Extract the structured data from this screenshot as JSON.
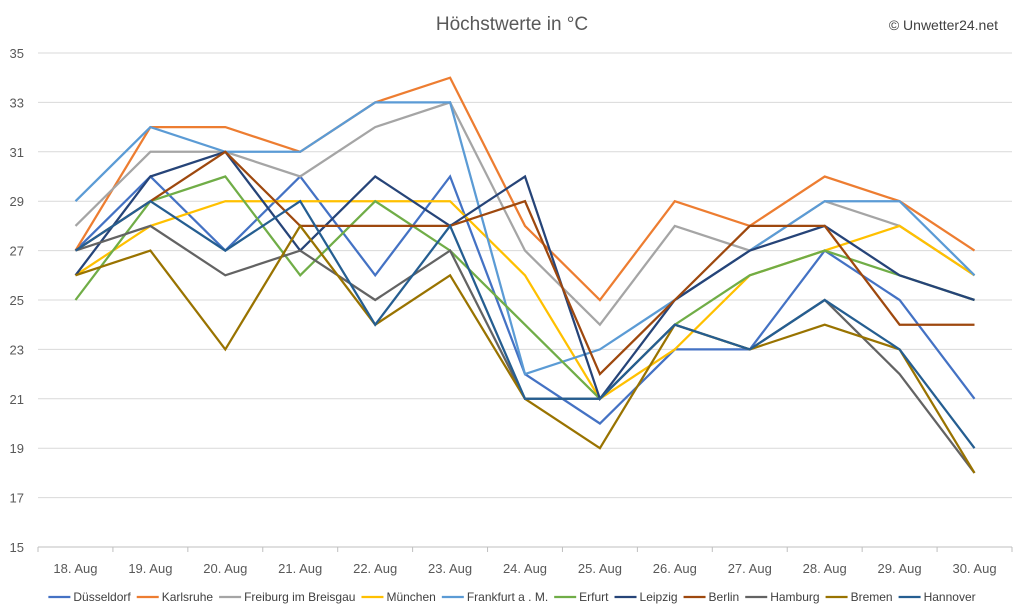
{
  "chart_data": {
    "type": "line",
    "title": "Höchstwerte in °C",
    "credit": "© Unwetter24.net",
    "xlabel": "",
    "ylabel": "",
    "ylim": [
      15,
      35
    ],
    "yticks": [
      "15",
      "17",
      "19",
      "21",
      "23",
      "25",
      "27",
      "29",
      "31",
      "33",
      "35"
    ],
    "categories": [
      "18. Aug",
      "19. Aug",
      "20. Aug",
      "21. Aug",
      "22. Aug",
      "23. Aug",
      "24. Aug",
      "25. Aug",
      "26. Aug",
      "27. Aug",
      "28. Aug",
      "29. Aug",
      "30. Aug"
    ],
    "grid": true,
    "legend_position": "bottom",
    "series": [
      {
        "name": "Düsseldorf",
        "color": "#4472C4",
        "values": [
          27,
          30,
          27,
          30,
          26,
          30,
          22,
          20,
          23,
          23,
          27,
          25,
          21
        ]
      },
      {
        "name": "Karlsruhe",
        "color": "#ED7D31",
        "values": [
          27,
          32,
          32,
          31,
          33,
          34,
          28,
          25,
          29,
          28,
          30,
          29,
          27
        ]
      },
      {
        "name": "Freiburg im Breisgau",
        "color": "#A5A5A5",
        "values": [
          28,
          31,
          31,
          30,
          32,
          33,
          27,
          24,
          28,
          27,
          29,
          28,
          26
        ]
      },
      {
        "name": "München",
        "color": "#FFC000",
        "values": [
          26,
          28,
          29,
          29,
          29,
          29,
          26,
          21,
          23,
          26,
          27,
          28,
          26
        ]
      },
      {
        "name": "Frankfurt a . M.",
        "color": "#5B9BD5",
        "values": [
          29,
          32,
          31,
          31,
          33,
          33,
          22,
          23,
          25,
          27,
          29,
          29,
          26
        ]
      },
      {
        "name": "Erfurt",
        "color": "#70AD47",
        "values": [
          25,
          29,
          30,
          26,
          29,
          27,
          24,
          21,
          24,
          26,
          27,
          26,
          25
        ]
      },
      {
        "name": "Leipzig",
        "color": "#264478",
        "values": [
          26,
          30,
          31,
          27,
          30,
          28,
          30,
          21,
          25,
          27,
          28,
          26,
          25
        ]
      },
      {
        "name": "Berlin",
        "color": "#9E480E",
        "values": [
          27,
          29,
          31,
          28,
          28,
          28,
          29,
          22,
          25,
          28,
          28,
          24,
          24
        ]
      },
      {
        "name": "Hamburg",
        "color": "#636363",
        "values": [
          27,
          28,
          26,
          27,
          25,
          27,
          21,
          21,
          24,
          23,
          25,
          22,
          18
        ]
      },
      {
        "name": "Bremen",
        "color": "#997300",
        "values": [
          26,
          27,
          23,
          28,
          24,
          26,
          21,
          19,
          24,
          23,
          24,
          23,
          18
        ]
      },
      {
        "name": "Hannover",
        "color": "#255E91",
        "values": [
          27,
          29,
          27,
          29,
          24,
          28,
          21,
          21,
          24,
          23,
          25,
          23,
          19
        ]
      }
    ]
  }
}
